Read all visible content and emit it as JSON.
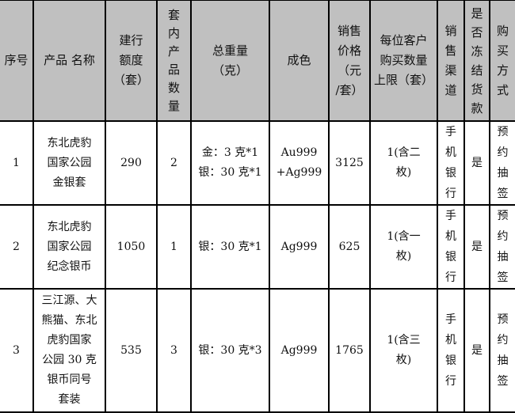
{
  "table": {
    "headers": [
      "序号",
      "产品 名称",
      "建行\n额度\n（套）",
      "套\n内\n产\n品\n数\n量",
      "总重量\n（克）",
      "成色",
      "销售\n价格\n（元\n/套）",
      "每位客户\n购买数量\n上限（套）",
      "销\n售\n渠\n道",
      "是\n否\n冻\n结\n货\n款",
      "购\n买\n方\n式"
    ],
    "rows": [
      [
        "1",
        "东北虎豹\n国家公园\n金银套",
        "290",
        "2",
        "金：3 克*1\n银：30 克*1",
        "Au999\n+Ag999",
        "3125",
        "1(含二\n枚)",
        "手\n机\n银\n行",
        "是",
        "预\n约\n抽\n签"
      ],
      [
        "2",
        "东北虎豹\n国家公园\n纪念银币",
        "1050",
        "1",
        "银：30 克*1",
        "Ag999",
        "625",
        "1(含一\n枚)",
        "手\n机\n银\n行",
        "是",
        "预\n约\n抽\n签"
      ],
      [
        "3",
        "三江源、大\n熊猫、东北\n虎豹国家\n公园 30 克\n银币同号\n套装",
        "535",
        "3",
        "银：30 克*3",
        "Ag999",
        "1765",
        "1(含三\n枚)",
        "手\n机\n银\n行",
        "是",
        "预\n约\n抽\n签"
      ]
    ]
  }
}
